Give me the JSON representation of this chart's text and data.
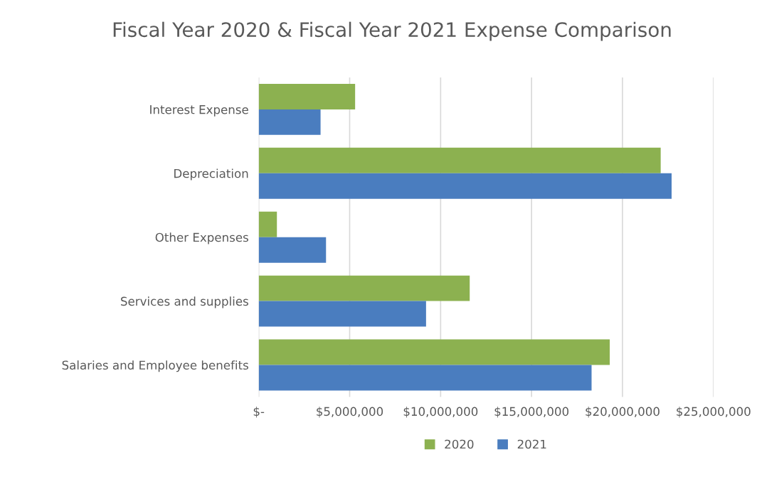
{
  "chart_data": {
    "type": "bar",
    "orientation": "horizontal",
    "title": "Fiscal Year 2020 & Fiscal Year 2021 Expense Comparison",
    "categories": [
      "Interest Expense",
      "Depreciation",
      "Other Expenses",
      "Services and supplies",
      "Salaries and Employee benefits"
    ],
    "series": [
      {
        "name": "2020",
        "color": "#8cb150",
        "values": [
          5300000,
          22100000,
          1000000,
          11600000,
          19300000
        ]
      },
      {
        "name": "2021",
        "color": "#4a7dbf",
        "values": [
          3400000,
          22700000,
          3700000,
          9200000,
          18300000
        ]
      }
    ],
    "xlim": [
      0,
      25000000
    ],
    "xticks": [
      {
        "value": 0,
        "label": "$-"
      },
      {
        "value": 5000000,
        "label": "$5,000,000"
      },
      {
        "value": 10000000,
        "label": "$10,000,000"
      },
      {
        "value": 15000000,
        "label": "$15,000,000"
      },
      {
        "value": 20000000,
        "label": "$20,000,000"
      },
      {
        "value": 25000000,
        "label": "$25,000,000"
      }
    ],
    "grid": "x",
    "legend": "bottom"
  }
}
